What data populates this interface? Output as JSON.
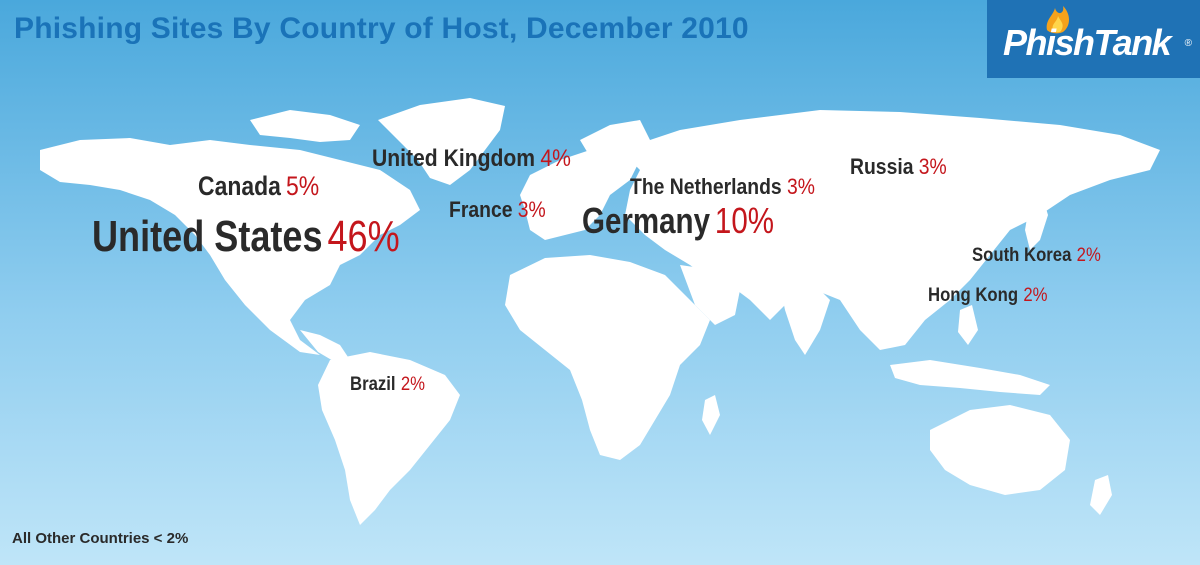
{
  "title": "Phishing Sites By Country of Host, December 2010",
  "logo": {
    "text": "PhishTank",
    "reg": "®"
  },
  "colors": {
    "ocean_top": "#4aa8dc",
    "ocean_bottom": "#bfe5f8",
    "land": "#ffffff",
    "title": "#1a73b8",
    "label": "#2a2a2a",
    "percent": "#c4161c",
    "logo_bg": "#1f72b5"
  },
  "countries": [
    {
      "name": "United States",
      "percent": "46%"
    },
    {
      "name": "Germany",
      "percent": "10%"
    },
    {
      "name": "Canada",
      "percent": "5%"
    },
    {
      "name": "United Kingdom",
      "percent": "4%"
    },
    {
      "name": "France",
      "percent": "3%"
    },
    {
      "name": "The Netherlands",
      "percent": "3%"
    },
    {
      "name": "Russia",
      "percent": "3%"
    },
    {
      "name": "South Korea",
      "percent": "2%"
    },
    {
      "name": "Hong Kong",
      "percent": "2%"
    },
    {
      "name": "Brazil",
      "percent": "2%"
    }
  ],
  "footnote": "All Other Countries < 2%"
}
